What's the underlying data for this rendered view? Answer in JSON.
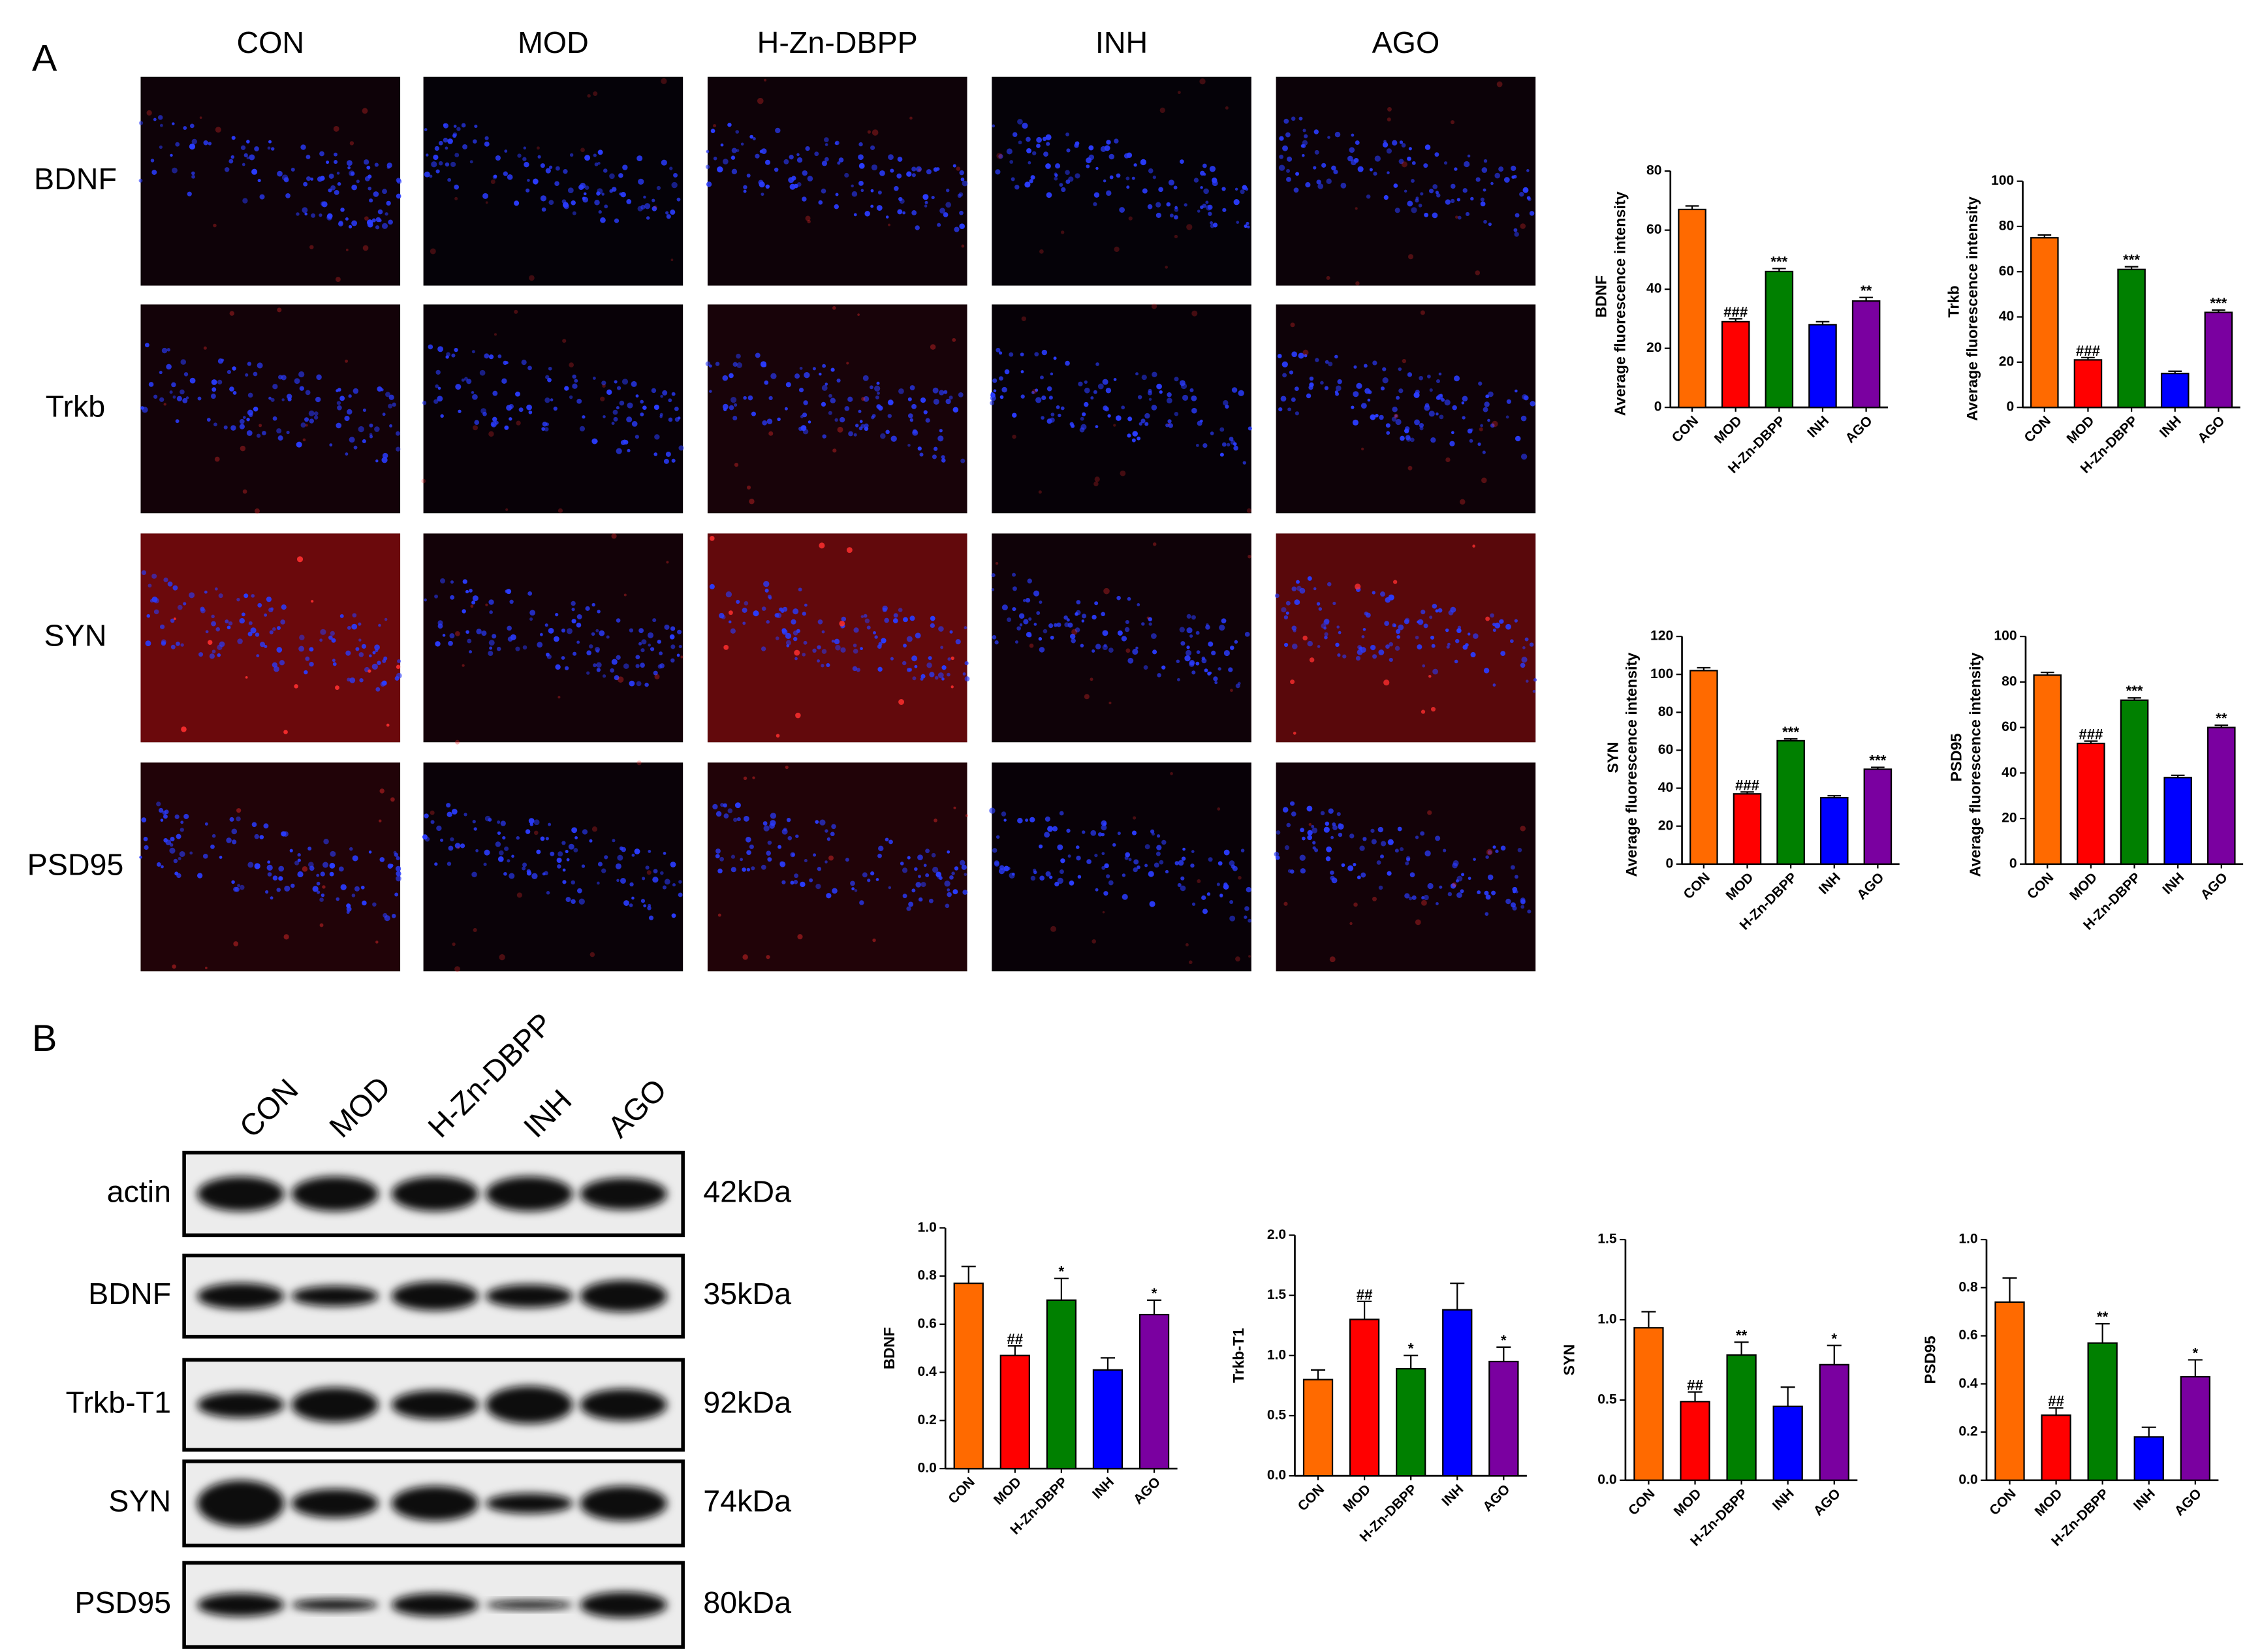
{
  "panel_a": {
    "label": "A",
    "columns": [
      "CON",
      "MOD",
      "H-Zn-DBPP",
      "INH",
      "AGO"
    ],
    "rows": [
      "BDNF",
      "Trkb",
      "SYN",
      "PSD95"
    ]
  },
  "panel_b": {
    "label": "B",
    "lanes": [
      "CON",
      "MOD",
      "H-Zn-DBPP",
      "INH",
      "AGO"
    ],
    "rows": [
      "actin",
      "BDNF",
      "Trkb-T1",
      "SYN",
      "PSD95"
    ],
    "sizes": [
      "42kDa",
      "35kDa",
      "92kDa",
      "74kDa",
      "80kDa"
    ]
  },
  "chart_data": [
    {
      "type": "bar",
      "ylabel": "BDNF",
      "ylabel2": "Average fluorescence intensity",
      "categories": [
        "CON",
        "MOD",
        "H-Zn-DBPP",
        "INH",
        "AGO"
      ],
      "values": [
        67,
        29,
        46,
        28,
        36
      ],
      "errors": [
        1.2,
        1,
        1,
        1,
        1.2
      ],
      "annotations": [
        null,
        "###",
        "***",
        null,
        "**"
      ],
      "colors": [
        "#ff6a00",
        "#ff0000",
        "#008000",
        "#0000ff",
        "#7a00a0"
      ],
      "ylim": [
        0,
        80
      ],
      "yticks": [
        0,
        20,
        40,
        60,
        80
      ]
    },
    {
      "type": "bar",
      "ylabel": "Trkb",
      "ylabel2": "Average fluorescence intensity",
      "categories": [
        "CON",
        "MOD",
        "H-Zn-DBPP",
        "INH",
        "AGO"
      ],
      "values": [
        75,
        21,
        61,
        15,
        42
      ],
      "errors": [
        1.2,
        1,
        1.2,
        1,
        1
      ],
      "annotations": [
        null,
        "###",
        "***",
        null,
        "***"
      ],
      "colors": [
        "#ff6a00",
        "#ff0000",
        "#008000",
        "#0000ff",
        "#7a00a0"
      ],
      "ylim": [
        0,
        100
      ],
      "yticks": [
        0,
        20,
        40,
        60,
        80,
        100
      ]
    },
    {
      "type": "bar",
      "ylabel": "SYN",
      "ylabel2": "Average fluorescence intensity",
      "categories": [
        "CON",
        "MOD",
        "H-Zn-DBPP",
        "INH",
        "AGO"
      ],
      "values": [
        102,
        37,
        65,
        35,
        50
      ],
      "errors": [
        1.5,
        1,
        1,
        1,
        1
      ],
      "annotations": [
        null,
        "###",
        "***",
        null,
        "***"
      ],
      "colors": [
        "#ff6a00",
        "#ff0000",
        "#008000",
        "#0000ff",
        "#7a00a0"
      ],
      "ylim": [
        0,
        120
      ],
      "yticks": [
        0,
        20,
        40,
        60,
        80,
        100,
        120
      ]
    },
    {
      "type": "bar",
      "ylabel": "PSD95",
      "ylabel2": "Average fluorescence intensity",
      "categories": [
        "CON",
        "MOD",
        "H-Zn-DBPP",
        "INH",
        "AGO"
      ],
      "values": [
        83,
        53,
        72,
        38,
        60
      ],
      "errors": [
        1.2,
        1,
        1,
        1,
        1
      ],
      "annotations": [
        null,
        "###",
        "***",
        null,
        "**"
      ],
      "colors": [
        "#ff6a00",
        "#ff0000",
        "#008000",
        "#0000ff",
        "#7a00a0"
      ],
      "ylim": [
        0,
        100
      ],
      "yticks": [
        0,
        20,
        40,
        60,
        80,
        100
      ]
    },
    {
      "type": "bar",
      "ylabel": "BDNF",
      "categories": [
        "CON",
        "MOD",
        "H-Zn-DBPP",
        "INH",
        "AGO"
      ],
      "values": [
        0.77,
        0.47,
        0.7,
        0.41,
        0.64
      ],
      "errors": [
        0.07,
        0.04,
        0.09,
        0.05,
        0.06
      ],
      "annotations": [
        null,
        "##",
        "*",
        null,
        "*"
      ],
      "colors": [
        "#ff6a00",
        "#ff0000",
        "#008000",
        "#0000ff",
        "#7a00a0"
      ],
      "ylim": [
        0,
        1
      ],
      "yticks": [
        {
          "value": 0,
          "label": "0.0"
        },
        0.2,
        0.4,
        0.6,
        0.8,
        {
          "value": 1,
          "label": "1.0"
        }
      ]
    },
    {
      "type": "bar",
      "ylabel": "Trkb-T1",
      "categories": [
        "CON",
        "MOD",
        "H-Zn-DBPP",
        "INH",
        "AGO"
      ],
      "values": [
        0.8,
        1.3,
        0.89,
        1.38,
        0.95
      ],
      "errors": [
        0.08,
        0.15,
        0.11,
        0.22,
        0.12
      ],
      "annotations": [
        null,
        "##",
        "*",
        null,
        "*"
      ],
      "colors": [
        "#ff6a00",
        "#ff0000",
        "#008000",
        "#0000ff",
        "#7a00a0"
      ],
      "ylim": [
        0,
        2
      ],
      "yticks": [
        {
          "value": 0,
          "label": "0.0"
        },
        0.5,
        {
          "value": 1,
          "label": "1.0"
        },
        1.5,
        {
          "value": 2,
          "label": "2.0"
        }
      ]
    },
    {
      "type": "bar",
      "ylabel": "SYN",
      "categories": [
        "CON",
        "MOD",
        "H-Zn-DBPP",
        "INH",
        "AGO"
      ],
      "values": [
        0.95,
        0.49,
        0.78,
        0.46,
        0.72
      ],
      "errors": [
        0.1,
        0.06,
        0.08,
        0.12,
        0.12
      ],
      "annotations": [
        null,
        "##",
        "**",
        null,
        "*"
      ],
      "colors": [
        "#ff6a00",
        "#ff0000",
        "#008000",
        "#0000ff",
        "#7a00a0"
      ],
      "ylim": [
        0,
        1.5
      ],
      "yticks": [
        {
          "value": 0,
          "label": "0.0"
        },
        0.5,
        {
          "value": 1,
          "label": "1.0"
        },
        1.5
      ]
    },
    {
      "type": "bar",
      "ylabel": "PSD95",
      "categories": [
        "CON",
        "MOD",
        "H-Zn-DBPP",
        "INH",
        "AGO"
      ],
      "values": [
        0.74,
        0.27,
        0.57,
        0.18,
        0.43
      ],
      "errors": [
        0.1,
        0.03,
        0.08,
        0.04,
        0.07
      ],
      "annotations": [
        null,
        "##",
        "**",
        null,
        "*"
      ],
      "colors": [
        "#ff6a00",
        "#ff0000",
        "#008000",
        "#0000ff",
        "#7a00a0"
      ],
      "ylim": [
        0,
        1
      ],
      "yticks": [
        {
          "value": 0,
          "label": "0.0"
        },
        0.2,
        0.4,
        0.6,
        0.8,
        {
          "value": 1,
          "label": "1.0"
        }
      ]
    }
  ]
}
